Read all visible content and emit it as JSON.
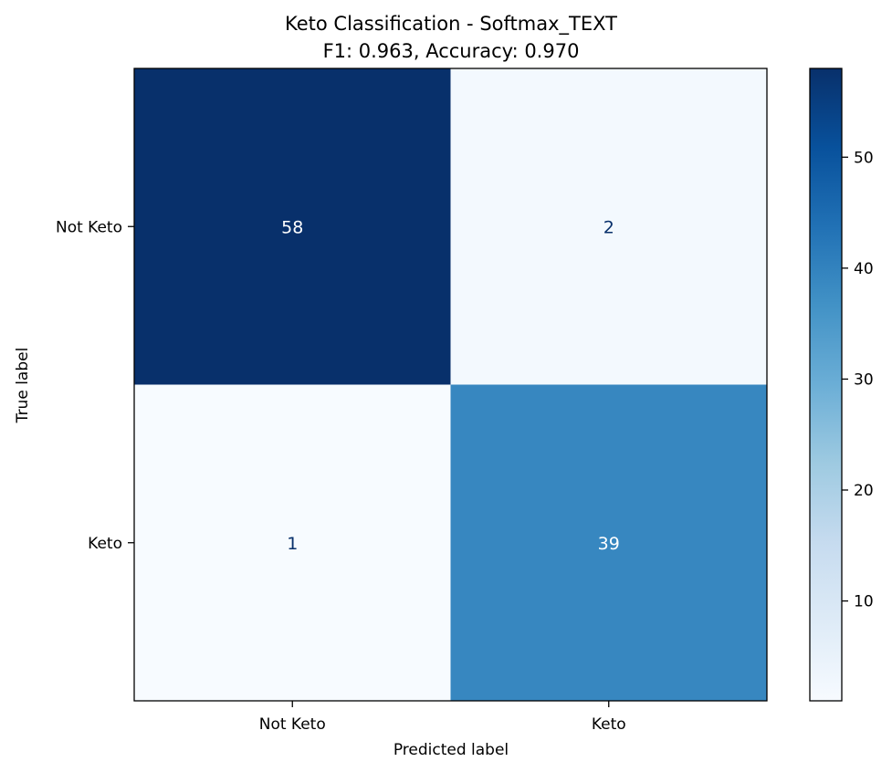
{
  "chart_data": {
    "type": "heatmap",
    "title": "Keto Classification - Softmax_TEXT",
    "subtitle": "F1: 0.963, Accuracy: 0.970",
    "xlabel": "Predicted label",
    "ylabel": "True label",
    "x_categories": [
      "Not Keto",
      "Keto"
    ],
    "y_categories": [
      "Not Keto",
      "Keto"
    ],
    "values": [
      [
        58,
        2
      ],
      [
        1,
        39
      ]
    ],
    "colormap": "Blues",
    "colorbar": {
      "min": 1,
      "max": 58,
      "ticks": [
        10,
        20,
        30,
        40,
        50
      ]
    },
    "grid": false
  }
}
